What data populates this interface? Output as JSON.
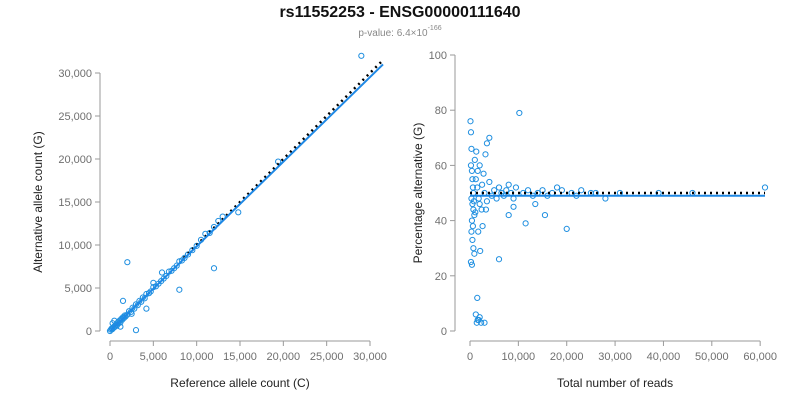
{
  "header": {
    "title": "rs11552253 - ENSG00000111640",
    "pvalue_prefix": "p-value: 6.4×10",
    "pvalue_exponent": "-166"
  },
  "colors": {
    "points": "#1f8fe0",
    "fit_line": "#1e88e5",
    "reference_line": "#000000",
    "axis": "#9a9a9a",
    "tick_text": "#6f6f6f"
  },
  "chart_data": [
    {
      "type": "scatter",
      "xlabel": "Reference allele count (C)",
      "ylabel": "Alternative allele count (G)",
      "xlim": [
        0,
        30000
      ],
      "ylim": [
        0,
        30000
      ],
      "xticks": [
        0,
        5000,
        10000,
        15000,
        20000,
        25000,
        30000
      ],
      "xtick_labels": [
        "0",
        "5,000",
        "10,000",
        "15,000",
        "20,000",
        "25,000",
        "30,000"
      ],
      "yticks": [
        0,
        5000,
        10000,
        15000,
        20000,
        25000,
        30000
      ],
      "ytick_labels": [
        "0",
        "5,000",
        "10,000",
        "15,000",
        "20,000",
        "25,000",
        "30,000"
      ],
      "reference_line": {
        "style": "dotted",
        "from": [
          8500,
          8500
        ],
        "to": [
          31500,
          31500
        ]
      },
      "fit_line": {
        "from": [
          0,
          0
        ],
        "to": [
          31500,
          31000
        ]
      },
      "points": [
        [
          0,
          0
        ],
        [
          100,
          150
        ],
        [
          200,
          300
        ],
        [
          250,
          200
        ],
        [
          400,
          350
        ],
        [
          500,
          550
        ],
        [
          600,
          500
        ],
        [
          700,
          750
        ],
        [
          800,
          650
        ],
        [
          900,
          1000
        ],
        [
          1000,
          900
        ],
        [
          1100,
          1200
        ],
        [
          1200,
          1000
        ],
        [
          1300,
          1400
        ],
        [
          1400,
          1300
        ],
        [
          1500,
          1600
        ],
        [
          1600,
          1500
        ],
        [
          1700,
          1800
        ],
        [
          1800,
          1700
        ],
        [
          2000,
          1900
        ],
        [
          2200,
          2300
        ],
        [
          2400,
          2200
        ],
        [
          2600,
          2700
        ],
        [
          2800,
          2600
        ],
        [
          3000,
          3100
        ],
        [
          3200,
          3000
        ],
        [
          3400,
          3500
        ],
        [
          3600,
          3400
        ],
        [
          3800,
          3900
        ],
        [
          4000,
          3800
        ],
        [
          4200,
          4300
        ],
        [
          4500,
          4400
        ],
        [
          4700,
          4600
        ],
        [
          5000,
          5100
        ],
        [
          5300,
          5200
        ],
        [
          5600,
          5500
        ],
        [
          5900,
          5800
        ],
        [
          6200,
          6100
        ],
        [
          6500,
          6400
        ],
        [
          6800,
          6900
        ],
        [
          7100,
          7000
        ],
        [
          7400,
          7300
        ],
        [
          7700,
          7600
        ],
        [
          8000,
          8100
        ],
        [
          8300,
          8200
        ],
        [
          8600,
          8500
        ],
        [
          9000,
          8900
        ],
        [
          9500,
          9400
        ],
        [
          10000,
          9900
        ],
        [
          10500,
          10600
        ],
        [
          11000,
          11300
        ],
        [
          11500,
          11400
        ],
        [
          12000,
          12100
        ],
        [
          12500,
          12800
        ],
        [
          13000,
          13300
        ],
        [
          14800,
          13800
        ],
        [
          19400,
          19700
        ],
        [
          29000,
          32000
        ],
        [
          2000,
          8000
        ],
        [
          12000,
          7300
        ],
        [
          3000,
          100
        ],
        [
          1500,
          3500
        ],
        [
          2500,
          2000
        ],
        [
          4200,
          2600
        ],
        [
          5000,
          5600
        ],
        [
          8000,
          4800
        ],
        [
          500,
          1200
        ],
        [
          1200,
          500
        ],
        [
          300,
          900
        ],
        [
          6000,
          6800
        ]
      ]
    },
    {
      "type": "scatter",
      "xlabel": "Total number of reads",
      "ylabel": "Percentage alternative (G)",
      "xlim": [
        0,
        61000
      ],
      "ylim": [
        0,
        100
      ],
      "xticks": [
        0,
        10000,
        20000,
        30000,
        40000,
        50000,
        60000
      ],
      "xtick_labels": [
        "0",
        "10,000",
        "20,000",
        "30,000",
        "40,000",
        "50,000",
        "60,000"
      ],
      "yticks": [
        0,
        20,
        40,
        60,
        80,
        100
      ],
      "ytick_labels": [
        "0",
        "20",
        "40",
        "60",
        "80",
        "100"
      ],
      "reference_line": {
        "style": "dotted",
        "from": [
          0,
          50
        ],
        "to": [
          61000,
          50
        ]
      },
      "fit_line": {
        "from": [
          0,
          49
        ],
        "to": [
          61000,
          49
        ]
      },
      "points": [
        [
          100,
          76
        ],
        [
          200,
          72
        ],
        [
          300,
          66
        ],
        [
          200,
          60
        ],
        [
          400,
          58
        ],
        [
          500,
          55
        ],
        [
          600,
          52
        ],
        [
          700,
          50
        ],
        [
          300,
          48
        ],
        [
          500,
          46
        ],
        [
          700,
          44
        ],
        [
          900,
          42
        ],
        [
          400,
          40
        ],
        [
          600,
          38
        ],
        [
          300,
          36
        ],
        [
          500,
          33
        ],
        [
          700,
          30
        ],
        [
          900,
          28
        ],
        [
          200,
          25
        ],
        [
          400,
          24
        ],
        [
          1200,
          55
        ],
        [
          1500,
          52
        ],
        [
          1800,
          48
        ],
        [
          2000,
          46
        ],
        [
          2500,
          53
        ],
        [
          3000,
          50
        ],
        [
          3500,
          47
        ],
        [
          4000,
          54
        ],
        [
          4500,
          49
        ],
        [
          5000,
          51
        ],
        [
          5500,
          48
        ],
        [
          6000,
          52
        ],
        [
          6500,
          50
        ],
        [
          7000,
          49
        ],
        [
          7500,
          51
        ],
        [
          8000,
          53
        ],
        [
          8500,
          50
        ],
        [
          9000,
          48
        ],
        [
          9500,
          52
        ],
        [
          10200,
          79
        ],
        [
          11000,
          50
        ],
        [
          12000,
          51
        ],
        [
          13000,
          49
        ],
        [
          14000,
          50
        ],
        [
          15000,
          51
        ],
        [
          16000,
          49
        ],
        [
          17000,
          50
        ],
        [
          18000,
          52
        ],
        [
          19000,
          51
        ],
        [
          20000,
          37
        ],
        [
          21000,
          50
        ],
        [
          22000,
          49
        ],
        [
          23000,
          51
        ],
        [
          25000,
          50
        ],
        [
          26000,
          50
        ],
        [
          28000,
          48
        ],
        [
          31000,
          50
        ],
        [
          39000,
          50
        ],
        [
          46000,
          50
        ],
        [
          61000,
          52
        ],
        [
          1000,
          62
        ],
        [
          1300,
          65
        ],
        [
          1600,
          58
        ],
        [
          2000,
          60
        ],
        [
          2400,
          44
        ],
        [
          2800,
          57
        ],
        [
          3200,
          64
        ],
        [
          4000,
          70
        ],
        [
          3500,
          68
        ],
        [
          1400,
          3
        ],
        [
          1600,
          4
        ],
        [
          1800,
          4
        ],
        [
          2000,
          5
        ],
        [
          2300,
          3
        ],
        [
          1200,
          6
        ],
        [
          1500,
          12
        ],
        [
          3000,
          3
        ],
        [
          6000,
          26
        ],
        [
          8000,
          42
        ],
        [
          9000,
          45
        ],
        [
          11500,
          39
        ],
        [
          13500,
          46
        ],
        [
          15500,
          42
        ],
        [
          800,
          47
        ],
        [
          1100,
          43
        ],
        [
          1700,
          36
        ],
        [
          2100,
          29
        ],
        [
          2600,
          38
        ],
        [
          3300,
          44
        ]
      ]
    }
  ]
}
